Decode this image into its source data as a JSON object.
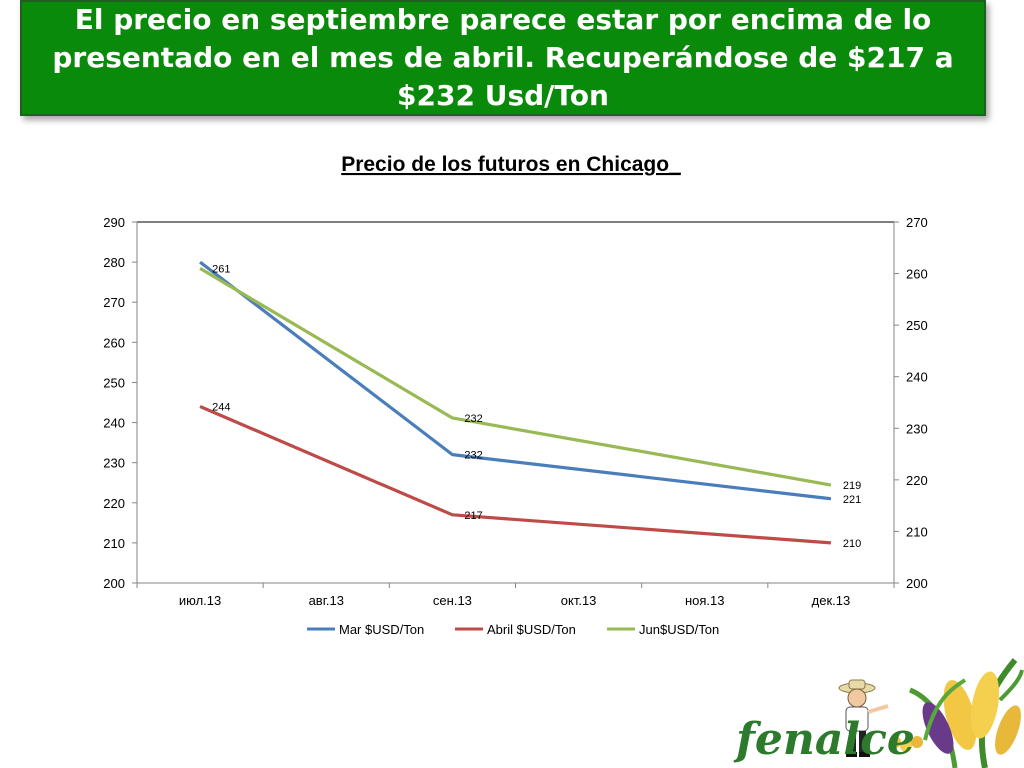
{
  "slide": {
    "headline": "El precio en septiembre parece estar por encima de lo presentado en el mes de abril. Recuperándose de $217 a $232 Usd/Ton"
  },
  "colors": {
    "banner": "#0a8a0a",
    "mar": "#4a7ebb",
    "abril": "#be4b48",
    "jun": "#98b954",
    "axis": "#868686"
  },
  "logo": {
    "text": "fenalce"
  },
  "chart_data": {
    "type": "line",
    "title": "Precio de los futuros en Chicago_",
    "categories": [
      "июл.13",
      "авг.13",
      "сен.13",
      "окт.13",
      "ноя.13",
      "дек.13"
    ],
    "y_left": {
      "min": 200,
      "max": 290,
      "step": 10
    },
    "y_right": {
      "min": 200,
      "max": 270,
      "step": 10
    },
    "grid": false,
    "legend_position": "bottom",
    "series": [
      {
        "name": "Mar $USD/Ton",
        "axis": "left",
        "color": "#4a7ebb",
        "points": [
          {
            "x": "июл.13",
            "y": 280
          },
          {
            "x": "сен.13",
            "y": 232
          },
          {
            "x": "дек.13",
            "y": 221
          }
        ],
        "labels": [
          "",
          "232",
          "221"
        ]
      },
      {
        "name": "Abril $USD/Ton",
        "axis": "left",
        "color": "#be4b48",
        "points": [
          {
            "x": "июл.13",
            "y": 244
          },
          {
            "x": "сен.13",
            "y": 217
          },
          {
            "x": "дек.13",
            "y": 210
          }
        ],
        "labels": [
          "244",
          "217",
          "210"
        ]
      },
      {
        "name": "Jun$USD/Ton",
        "axis": "right",
        "color": "#98b954",
        "points": [
          {
            "x": "июл.13",
            "y": 261
          },
          {
            "x": "сен.13",
            "y": 232
          },
          {
            "x": "дек.13",
            "y": 219
          }
        ],
        "labels": [
          "261",
          "232",
          "219"
        ]
      }
    ]
  }
}
